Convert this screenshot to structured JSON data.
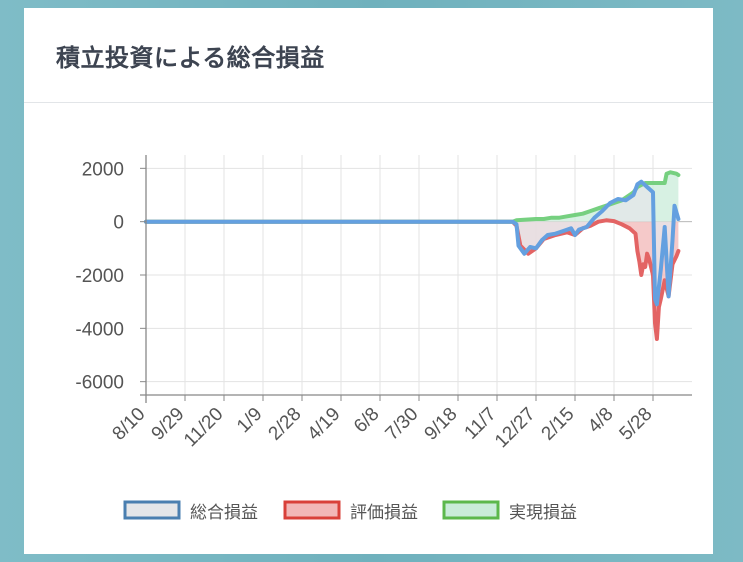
{
  "card": {
    "title": "積立投資による総合損益"
  },
  "chart_data": {
    "type": "area",
    "x": [
      "8/10",
      "9/29",
      "11/20",
      "1/9",
      "2/28",
      "4/19",
      "6/8",
      "7/30",
      "9/18",
      "11/7",
      "12/27",
      "2/15",
      "4/8",
      "5/28"
    ],
    "ylim": [
      -6500,
      2500
    ],
    "yticks": [
      2000,
      0,
      -2000,
      -4000,
      -6000
    ],
    "grid": true,
    "legend_position": "bottom",
    "series": [
      {
        "name": "総合損益",
        "color": "#4a7fb0",
        "line_color": "#64a0e0",
        "fill": "#e4e6e9",
        "points": [
          [
            0,
            0
          ],
          [
            9.4,
            0
          ],
          [
            9.5,
            -100
          ],
          [
            9.55,
            -900
          ],
          [
            9.7,
            -1200
          ],
          [
            9.85,
            -950
          ],
          [
            10.0,
            -1000
          ],
          [
            10.15,
            -700
          ],
          [
            10.3,
            -500
          ],
          [
            10.5,
            -450
          ],
          [
            10.7,
            -350
          ],
          [
            10.9,
            -250
          ],
          [
            11.0,
            -500
          ],
          [
            11.1,
            -300
          ],
          [
            11.3,
            -200
          ],
          [
            11.5,
            150
          ],
          [
            11.7,
            400
          ],
          [
            11.9,
            700
          ],
          [
            12.1,
            850
          ],
          [
            12.3,
            800
          ],
          [
            12.5,
            1000
          ],
          [
            12.6,
            1400
          ],
          [
            12.7,
            1500
          ],
          [
            12.85,
            1300
          ],
          [
            13.0,
            1100
          ],
          [
            13.05,
            -2900
          ],
          [
            13.1,
            -3100
          ],
          [
            13.2,
            -1800
          ],
          [
            13.3,
            -200
          ],
          [
            13.4,
            -2800
          ],
          [
            13.5,
            -700
          ],
          [
            13.55,
            600
          ],
          [
            13.65,
            100
          ]
        ]
      },
      {
        "name": "評価損益",
        "color": "#d9403a",
        "line_color": "#e36464",
        "fill": "#f2b7b7",
        "points": [
          [
            0,
            0
          ],
          [
            9.4,
            0
          ],
          [
            9.5,
            -150
          ],
          [
            9.6,
            -900
          ],
          [
            9.8,
            -1200
          ],
          [
            10.0,
            -1000
          ],
          [
            10.2,
            -650
          ],
          [
            10.5,
            -500
          ],
          [
            10.8,
            -400
          ],
          [
            11.0,
            -500
          ],
          [
            11.2,
            -250
          ],
          [
            11.4,
            -150
          ],
          [
            11.6,
            0
          ],
          [
            11.8,
            50
          ],
          [
            12.0,
            20
          ],
          [
            12.2,
            -100
          ],
          [
            12.4,
            -250
          ],
          [
            12.55,
            -450
          ],
          [
            12.6,
            -1100
          ],
          [
            12.65,
            -1500
          ],
          [
            12.7,
            -2000
          ],
          [
            12.75,
            -1600
          ],
          [
            12.8,
            -1700
          ],
          [
            12.85,
            -1200
          ],
          [
            12.9,
            -1400
          ],
          [
            13.0,
            -2000
          ],
          [
            13.05,
            -3800
          ],
          [
            13.1,
            -4400
          ],
          [
            13.15,
            -3200
          ],
          [
            13.2,
            -2900
          ],
          [
            13.3,
            -2200
          ],
          [
            13.4,
            -2800
          ],
          [
            13.5,
            -1600
          ],
          [
            13.6,
            -1300
          ],
          [
            13.65,
            -1100
          ]
        ]
      },
      {
        "name": "実現損益",
        "color": "#5cb84c",
        "line_color": "#76d080",
        "fill": "#c9ecd9",
        "points": [
          [
            0,
            0
          ],
          [
            9.4,
            0
          ],
          [
            9.5,
            50
          ],
          [
            9.8,
            80
          ],
          [
            10.0,
            100
          ],
          [
            10.2,
            100
          ],
          [
            10.4,
            150
          ],
          [
            10.6,
            150
          ],
          [
            10.8,
            200
          ],
          [
            11.0,
            250
          ],
          [
            11.2,
            300
          ],
          [
            11.4,
            400
          ],
          [
            11.6,
            500
          ],
          [
            11.8,
            600
          ],
          [
            12.0,
            700
          ],
          [
            12.2,
            800
          ],
          [
            12.4,
            1000
          ],
          [
            12.5,
            1100
          ],
          [
            12.6,
            1300
          ],
          [
            12.8,
            1450
          ],
          [
            13.0,
            1450
          ],
          [
            13.2,
            1450
          ],
          [
            13.3,
            1450
          ],
          [
            13.35,
            1800
          ],
          [
            13.45,
            1850
          ],
          [
            13.6,
            1800
          ],
          [
            13.65,
            1750
          ]
        ]
      }
    ]
  }
}
